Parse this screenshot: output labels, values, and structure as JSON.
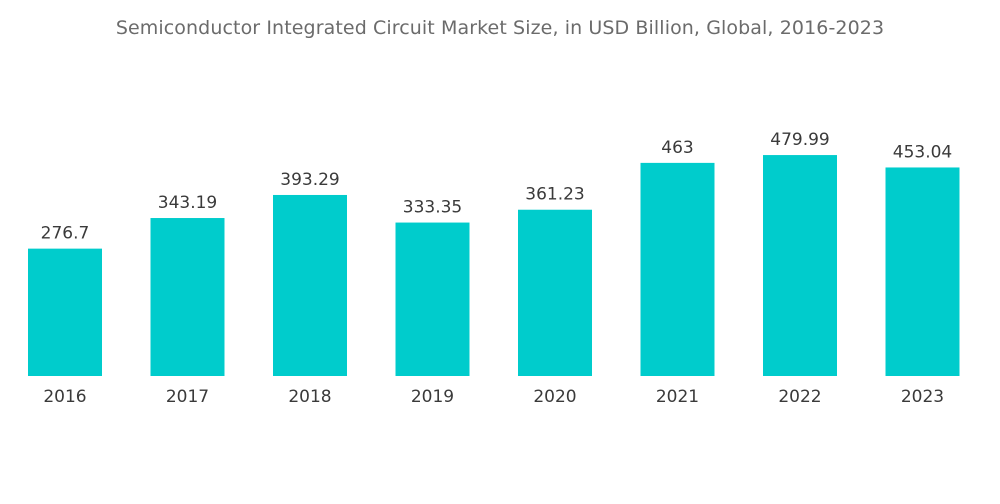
{
  "chart_data": {
    "type": "bar",
    "title": "Semiconductor Integrated Circuit Market Size, in USD Billion, Global, 2016-2023",
    "xlabel": "",
    "ylabel": "",
    "categories": [
      "2016",
      "2017",
      "2018",
      "2019",
      "2020",
      "2021",
      "2022",
      "2023"
    ],
    "values": [
      276.7,
      343.19,
      393.29,
      333.35,
      361.23,
      463,
      479.99,
      453.04
    ],
    "value_labels": [
      "276.7",
      "343.19",
      "393.29",
      "333.35",
      "361.23",
      "463",
      "479.99",
      "453.04"
    ],
    "ylim": [
      0,
      500
    ],
    "grid": false,
    "bar_color": "#00cccc"
  }
}
